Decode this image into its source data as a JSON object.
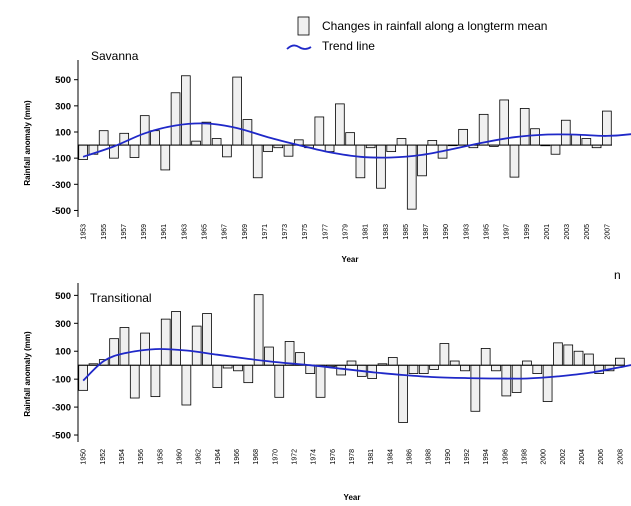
{
  "legend": {
    "bar_label": "Changes in rainfall along a longterm mean",
    "line_label": "Trend line",
    "trend_color": "#1f28c8"
  },
  "stray_mark": "n",
  "chart_data": [
    {
      "type": "bar",
      "title": "Savanna",
      "xlabel": "Year",
      "ylabel": "Rainfall anomaly (mm)",
      "ylim": [
        -550,
        620
      ],
      "yticks": [
        500,
        300,
        100,
        -100,
        -300,
        -500
      ],
      "x_start": 1953,
      "x_tick_labels": [
        "1953",
        "1955",
        "1957",
        "1959",
        "1961",
        "1963",
        "1965",
        "1967",
        "1969",
        "1971",
        "1973",
        "1975",
        "1977",
        "1979",
        "1981",
        "1983",
        "1985",
        "1987",
        "1990",
        "1993",
        "1995",
        "1997",
        "1999",
        "2001",
        "2003",
        "2005",
        "2007"
      ],
      "values": [
        -110,
        -70,
        110,
        -100,
        90,
        -95,
        225,
        110,
        -190,
        400,
        530,
        30,
        175,
        50,
        -90,
        520,
        195,
        -250,
        -50,
        -20,
        -85,
        40,
        -20,
        215,
        -50,
        315,
        95,
        -250,
        -20,
        -330,
        -50,
        50,
        -490,
        -235,
        35,
        -100,
        0,
        120,
        -20,
        235,
        -10,
        345,
        -245,
        280,
        125,
        -5,
        -70,
        190,
        80,
        50,
        -20,
        260
      ],
      "trend": [
        {
          "x": 1953,
          "y": -90
        },
        {
          "x": 1956,
          "y": -10
        },
        {
          "x": 1959,
          "y": 90
        },
        {
          "x": 1962,
          "y": 150
        },
        {
          "x": 1965,
          "y": 165
        },
        {
          "x": 1968,
          "y": 130
        },
        {
          "x": 1971,
          "y": 60
        },
        {
          "x": 1974,
          "y": 0
        },
        {
          "x": 1977,
          "y": -55
        },
        {
          "x": 1980,
          "y": -90
        },
        {
          "x": 1983,
          "y": -95
        },
        {
          "x": 1986,
          "y": -75
        },
        {
          "x": 1989,
          "y": -30
        },
        {
          "x": 1992,
          "y": 20
        },
        {
          "x": 1995,
          "y": 60
        },
        {
          "x": 1998,
          "y": 80
        },
        {
          "x": 2001,
          "y": 80
        },
        {
          "x": 2004,
          "y": 70
        },
        {
          "x": 2007,
          "y": 90
        },
        {
          "x": 2008,
          "y": 115
        }
      ]
    },
    {
      "type": "bar",
      "title": "Transitional",
      "xlabel": "Year",
      "ylabel": "Rainfall anomaly (mm)",
      "ylim": [
        -550,
        560
      ],
      "yticks": [
        500,
        300,
        100,
        -100,
        -300,
        -500
      ],
      "x_start": 1950,
      "x_tick_labels": [
        "1950",
        "1952",
        "1954",
        "1956",
        "1958",
        "1960",
        "1962",
        "1964",
        "1966",
        "1968",
        "1970",
        "1972",
        "1974",
        "1976",
        "1978",
        "1981",
        "1984",
        "1986",
        "1988",
        "1990",
        "1992",
        "1994",
        "1996",
        "1998",
        "2000",
        "2002",
        "2004",
        "2006",
        "2008"
      ],
      "values": [
        -180,
        10,
        40,
        190,
        270,
        -235,
        230,
        -225,
        330,
        385,
        -285,
        280,
        370,
        -160,
        -20,
        -40,
        -125,
        505,
        130,
        -230,
        170,
        90,
        -60,
        -230,
        -10,
        -70,
        30,
        -80,
        -95,
        10,
        55,
        -410,
        -60,
        -60,
        -30,
        155,
        30,
        -40,
        -330,
        120,
        -40,
        -220,
        -195,
        30,
        -60,
        -260,
        160,
        145,
        100,
        80,
        -60,
        -40,
        50
      ],
      "trend": [
        {
          "x": 1950,
          "y": -110
        },
        {
          "x": 1952,
          "y": 30
        },
        {
          "x": 1954,
          "y": 85
        },
        {
          "x": 1957,
          "y": 115
        },
        {
          "x": 1960,
          "y": 105
        },
        {
          "x": 1963,
          "y": 75
        },
        {
          "x": 1966,
          "y": 45
        },
        {
          "x": 1969,
          "y": 20
        },
        {
          "x": 1972,
          "y": 0
        },
        {
          "x": 1975,
          "y": -25
        },
        {
          "x": 1978,
          "y": -50
        },
        {
          "x": 1981,
          "y": -70
        },
        {
          "x": 1984,
          "y": -85
        },
        {
          "x": 1987,
          "y": -92
        },
        {
          "x": 1990,
          "y": -95
        },
        {
          "x": 1993,
          "y": -95
        },
        {
          "x": 1996,
          "y": -80
        },
        {
          "x": 1999,
          "y": -55
        },
        {
          "x": 2002,
          "y": -15
        },
        {
          "x": 2005,
          "y": 25
        },
        {
          "x": 2008,
          "y": 25
        }
      ]
    }
  ]
}
